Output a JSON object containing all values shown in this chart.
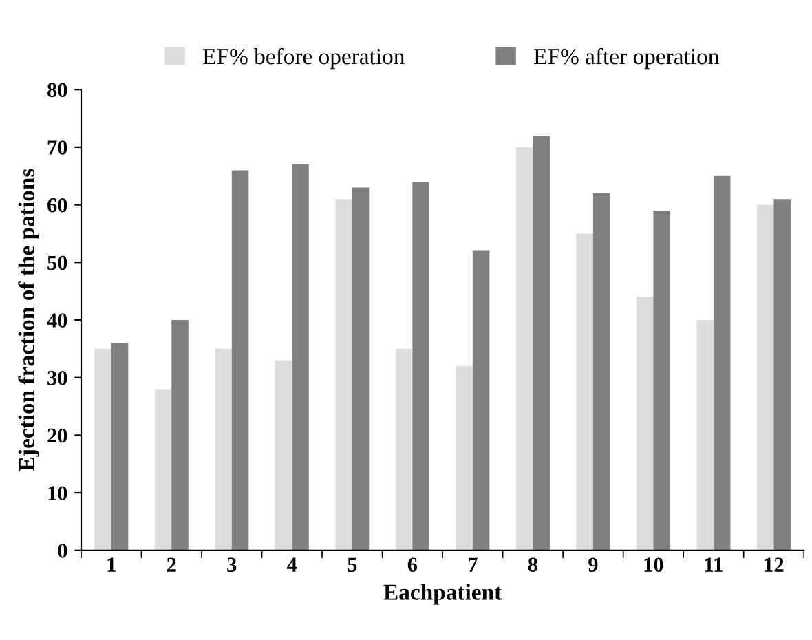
{
  "chart_data": {
    "type": "bar",
    "xlabel": "Eachpatient",
    "ylabel": "Ejection fraction of the pations",
    "categories": [
      "1",
      "2",
      "3",
      "4",
      "5",
      "6",
      "7",
      "8",
      "9",
      "10",
      "11",
      "12"
    ],
    "series": [
      {
        "name": "EF% before operation",
        "color": "#dddddd",
        "values": [
          35,
          28,
          35,
          33,
          61,
          35,
          32,
          70,
          55,
          44,
          40,
          60
        ]
      },
      {
        "name": "EF% after operation",
        "color": "#808080",
        "values": [
          36,
          40,
          66,
          67,
          63,
          64,
          52,
          72,
          62,
          59,
          65,
          61
        ]
      }
    ],
    "ylim": [
      0,
      80
    ],
    "yticks": [
      0,
      10,
      20,
      30,
      40,
      50,
      60,
      70,
      80
    ],
    "grid": false,
    "legend": "top"
  }
}
